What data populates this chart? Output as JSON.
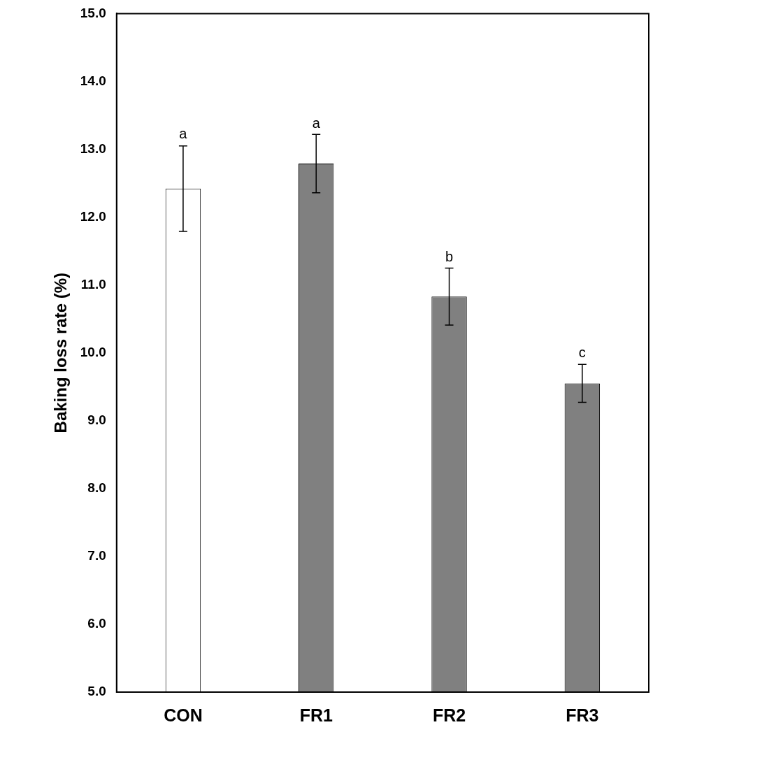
{
  "chart_data": {
    "type": "bar",
    "ylabel": "Baking loss rate (%)",
    "categories": [
      "CON",
      "FR1",
      "FR2",
      "FR3"
    ],
    "values": [
      12.42,
      12.79,
      10.83,
      9.55
    ],
    "colors": [
      "#ffffff",
      "#808080",
      "#808080",
      "#808080"
    ],
    "errors": [
      0.63,
      0.43,
      0.42,
      0.28
    ],
    "ylim": [
      5,
      15
    ],
    "yticks": [
      {
        "value": 5,
        "label": "5.0"
      },
      {
        "value": 6,
        "label": "6.0"
      },
      {
        "value": 7,
        "label": "7.0"
      },
      {
        "value": 8,
        "label": "8.0"
      },
      {
        "value": 9,
        "label": "9.0"
      },
      {
        "value": 10,
        "label": "10.0"
      },
      {
        "value": 11,
        "label": "11.0"
      },
      {
        "value": 12,
        "label": "12.0"
      },
      {
        "value": 13,
        "label": "13.0"
      },
      {
        "value": 14,
        "label": "14.0"
      },
      {
        "value": 15,
        "label": "15.0"
      }
    ],
    "annotations": [
      {
        "text": "a",
        "x": "CON",
        "y": 13.05
      },
      {
        "text": "a",
        "x": "FR1",
        "y": 13.21
      },
      {
        "text": "b",
        "x": "FR2",
        "y": 11.24
      },
      {
        "text": "c",
        "x": "FR3",
        "y": 9.83
      }
    ],
    "grid": false,
    "legend": false
  }
}
